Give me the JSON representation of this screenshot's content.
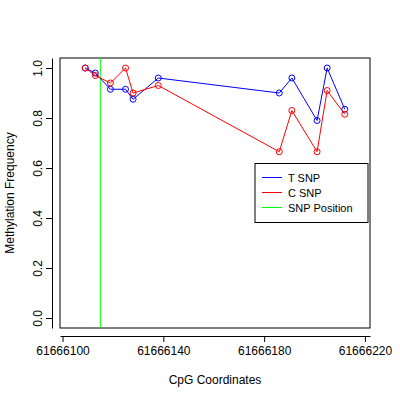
{
  "chart_data": {
    "type": "line",
    "x_label": "CpG Coordinates",
    "y_label": "Methylation Frequency",
    "x": [
      61666109,
      61666113,
      61666119,
      61666125,
      61666128,
      61666138,
      61666186,
      61666191,
      61666201,
      61666205,
      61666212
    ],
    "series": [
      {
        "name": "T SNP",
        "color": "#0000ff",
        "marker": "circle",
        "values": [
          1.0,
          0.98,
          0.915,
          0.915,
          0.875,
          0.96,
          0.9,
          0.96,
          0.79,
          1.0,
          0.835
        ]
      },
      {
        "name": "C SNP",
        "color": "#ff0000",
        "marker": "circle",
        "values": [
          1.0,
          0.97,
          0.94,
          1.0,
          0.9,
          0.93,
          0.665,
          0.83,
          0.665,
          0.91,
          0.815
        ]
      }
    ],
    "annotations": [
      {
        "type": "vline",
        "x": 61666115,
        "label": "SNP Position",
        "color": "#00ff00"
      }
    ],
    "xlim": [
      61666099,
      61666222
    ],
    "xticks": [
      61666100,
      61666140,
      61666180,
      61666220
    ],
    "ylim": [
      -0.04,
      1.04
    ],
    "yticks": [
      {
        "value": 0,
        "label": "0.0"
      },
      0.2,
      0.4,
      0.6,
      0.8,
      {
        "value": 1,
        "label": "1.0"
      }
    ],
    "legend": "right",
    "grid": false
  }
}
